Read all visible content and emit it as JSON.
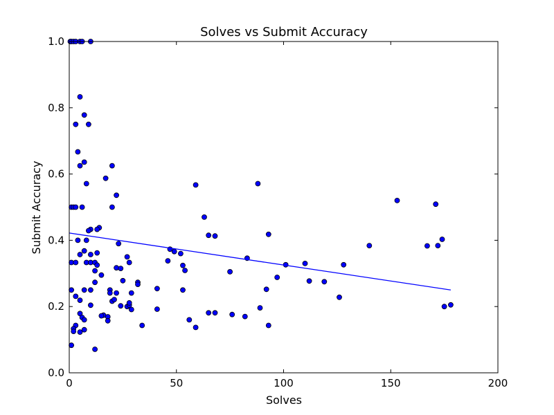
{
  "chart_data": {
    "type": "scatter",
    "title": "Solves vs Submit Accuracy",
    "xlabel": "Solves",
    "ylabel": "Submit Accuracy",
    "xlim": [
      0,
      200
    ],
    "ylim": [
      0.0,
      1.0
    ],
    "xticks": [
      "0",
      "50",
      "100",
      "150",
      "200"
    ],
    "yticks": [
      "0.0",
      "0.2",
      "0.4",
      "0.6",
      "0.8",
      "1.0"
    ],
    "grid": false,
    "legend": "none",
    "point_color": "#0000ff",
    "line_color": "#0000ff",
    "trendline": {
      "x": [
        0,
        178
      ],
      "y": [
        0.422,
        0.25
      ]
    },
    "points": [
      [
        0.5,
        1.0
      ],
      [
        1,
        1.0
      ],
      [
        2,
        1.0
      ],
      [
        3,
        1.0
      ],
      [
        5,
        1.0
      ],
      [
        6,
        1.0
      ],
      [
        10,
        1.0
      ],
      [
        5,
        0.833
      ],
      [
        7,
        0.778
      ],
      [
        3,
        0.75
      ],
      [
        9,
        0.75
      ],
      [
        4,
        0.667
      ],
      [
        7,
        0.636
      ],
      [
        5,
        0.625
      ],
      [
        20,
        0.625
      ],
      [
        17,
        0.587
      ],
      [
        8,
        0.571
      ],
      [
        22,
        0.536
      ],
      [
        1,
        0.5
      ],
      [
        2,
        0.5
      ],
      [
        3,
        0.5
      ],
      [
        6,
        0.5
      ],
      [
        20,
        0.5
      ],
      [
        14,
        0.438
      ],
      [
        13,
        0.433
      ],
      [
        10,
        0.433
      ],
      [
        9,
        0.429
      ],
      [
        4,
        0.4
      ],
      [
        8,
        0.4
      ],
      [
        23,
        0.39
      ],
      [
        7,
        0.368
      ],
      [
        13,
        0.362
      ],
      [
        5,
        0.357
      ],
      [
        10,
        0.357
      ],
      [
        1,
        0.333
      ],
      [
        3,
        0.333
      ],
      [
        8,
        0.333
      ],
      [
        10,
        0.333
      ],
      [
        12,
        0.333
      ],
      [
        28,
        0.333
      ],
      [
        13,
        0.325
      ],
      [
        22,
        0.317
      ],
      [
        24,
        0.315
      ],
      [
        12,
        0.308
      ],
      [
        15,
        0.295
      ],
      [
        27,
        0.35
      ],
      [
        25,
        0.278
      ],
      [
        12,
        0.273
      ],
      [
        32,
        0.273
      ],
      [
        32,
        0.267
      ],
      [
        1,
        0.25
      ],
      [
        7,
        0.25
      ],
      [
        10,
        0.25
      ],
      [
        19,
        0.25
      ],
      [
        19,
        0.241
      ],
      [
        22,
        0.241
      ],
      [
        29,
        0.241
      ],
      [
        3,
        0.231
      ],
      [
        5,
        0.219
      ],
      [
        20,
        0.216
      ],
      [
        21,
        0.221
      ],
      [
        10,
        0.204
      ],
      [
        24,
        0.202
      ],
      [
        27,
        0.2
      ],
      [
        28,
        0.204
      ],
      [
        28,
        0.211
      ],
      [
        29,
        0.191
      ],
      [
        5,
        0.179
      ],
      [
        6,
        0.167
      ],
      [
        7,
        0.16
      ],
      [
        16,
        0.174
      ],
      [
        15,
        0.172
      ],
      [
        18,
        0.169
      ],
      [
        18,
        0.157
      ],
      [
        3,
        0.143
      ],
      [
        2,
        0.133
      ],
      [
        2,
        0.125
      ],
      [
        7,
        0.13
      ],
      [
        5,
        0.123
      ],
      [
        1,
        0.083
      ],
      [
        12,
        0.071
      ],
      [
        34,
        0.143
      ],
      [
        41,
        0.254
      ],
      [
        41,
        0.192
      ],
      [
        46,
        0.338
      ],
      [
        47,
        0.373
      ],
      [
        49,
        0.366
      ],
      [
        52,
        0.36
      ],
      [
        53,
        0.324
      ],
      [
        54,
        0.309
      ],
      [
        53,
        0.25
      ],
      [
        56,
        0.16
      ],
      [
        59,
        0.137
      ],
      [
        59,
        0.567
      ],
      [
        63,
        0.47
      ],
      [
        65,
        0.415
      ],
      [
        68,
        0.413
      ],
      [
        65,
        0.181
      ],
      [
        68,
        0.181
      ],
      [
        75,
        0.305
      ],
      [
        76,
        0.176
      ],
      [
        82,
        0.17
      ],
      [
        83,
        0.346
      ],
      [
        88,
        0.571
      ],
      [
        89,
        0.196
      ],
      [
        92,
        0.252
      ],
      [
        93,
        0.418
      ],
      [
        93,
        0.143
      ],
      [
        97,
        0.288
      ],
      [
        101,
        0.326
      ],
      [
        110,
        0.33
      ],
      [
        112,
        0.277
      ],
      [
        119,
        0.275
      ],
      [
        126,
        0.228
      ],
      [
        128,
        0.326
      ],
      [
        140,
        0.384
      ],
      [
        153,
        0.52
      ],
      [
        167,
        0.383
      ],
      [
        171,
        0.509
      ],
      [
        172,
        0.384
      ],
      [
        174,
        0.403
      ],
      [
        175,
        0.2
      ],
      [
        178,
        0.205
      ]
    ]
  }
}
